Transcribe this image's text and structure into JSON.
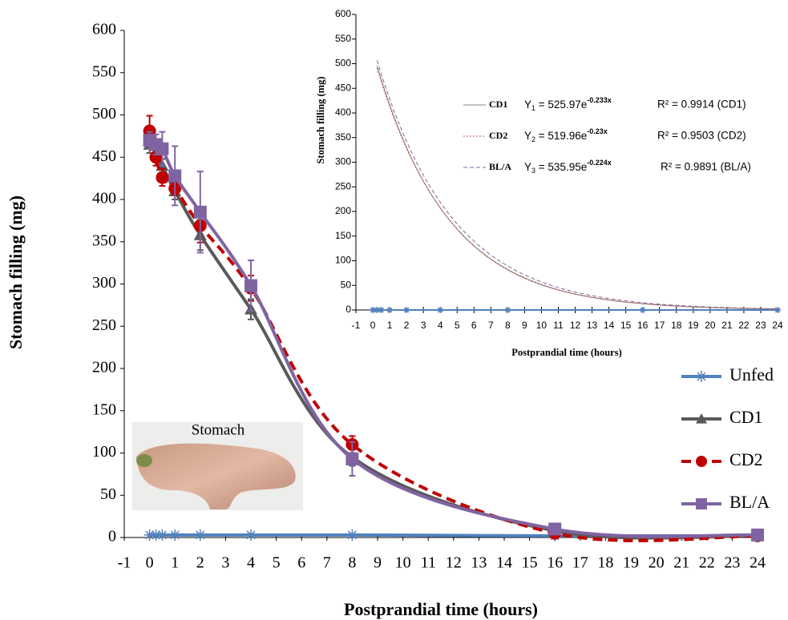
{
  "chart_data": [
    {
      "type": "line",
      "x_label": "Postprandial time (hours)",
      "y_label": "Stomach filling (mg)",
      "photo_label": "Stomach",
      "x": [
        0,
        0.25,
        0.5,
        1,
        2,
        4,
        8,
        16,
        24
      ],
      "xlim": [
        -1,
        24
      ],
      "xticks": [
        -1,
        0,
        1,
        2,
        3,
        4,
        5,
        6,
        7,
        8,
        9,
        10,
        11,
        12,
        13,
        14,
        15,
        16,
        17,
        18,
        19,
        20,
        21,
        22,
        23,
        24
      ],
      "ylim": [
        0,
        600
      ],
      "yticks": [
        0,
        50,
        100,
        150,
        200,
        250,
        300,
        350,
        400,
        450,
        500,
        550,
        600
      ],
      "legend": "right",
      "series": [
        {
          "name": "Unfed",
          "color": "#4f81bd",
          "marker": "asterisk",
          "dash": false,
          "values": [
            3,
            3,
            3,
            3,
            3,
            3,
            3,
            2,
            2
          ]
        },
        {
          "name": "CD1",
          "color": "#595959",
          "marker": "triangle",
          "dash": false,
          "values": [
            465,
            455,
            440,
            410,
            358,
            270,
            95,
            8,
            2
          ],
          "errors": [
            10,
            10,
            8,
            10,
            18,
            12,
            10,
            2,
            1
          ]
        },
        {
          "name": "CD2",
          "color": "#c00000",
          "marker": "circle",
          "dash": true,
          "values": [
            481,
            450,
            426,
            413,
            369,
            295,
            110,
            5,
            2
          ],
          "errors": [
            18,
            10,
            10,
            8,
            20,
            15,
            10,
            2,
            1
          ]
        },
        {
          "name": "BL/A",
          "color": "#8064a2",
          "marker": "square",
          "dash": false,
          "values": [
            470,
            465,
            460,
            428,
            385,
            298,
            93,
            10,
            3
          ],
          "errors": [
            10,
            12,
            20,
            35,
            48,
            30,
            20,
            3,
            1
          ]
        }
      ]
    },
    {
      "type": "line",
      "x_label": "Postprandial time (hours)",
      "y_label": "Stomach filling  (mg)",
      "xlim": [
        -1,
        24
      ],
      "xticks": [
        -1,
        0,
        1,
        2,
        3,
        4,
        5,
        6,
        7,
        8,
        9,
        10,
        11,
        12,
        13,
        14,
        15,
        16,
        17,
        18,
        19,
        20,
        21,
        22,
        23,
        24
      ],
      "ylim": [
        0,
        600
      ],
      "yticks": [
        0,
        50,
        100,
        150,
        200,
        250,
        300,
        350,
        400,
        450,
        500,
        550,
        600
      ],
      "series": [
        {
          "color": "#4f81bd",
          "x": [
            0,
            0.25,
            0.5,
            1,
            2,
            4,
            8,
            16,
            24
          ],
          "values": [
            0,
            0,
            0,
            0,
            0,
            0,
            0,
            0,
            0
          ]
        }
      ],
      "fits": [
        {
          "name": "CD1",
          "color": "#808080",
          "dash": "none",
          "a": 525.97,
          "b": -0.233,
          "equation": [
            {
              "text": "Y"
            },
            {
              "text": "1",
              "sub": true
            },
            {
              "text": " = 525.97e"
            },
            {
              "text": "-0.233x",
              "sup": true
            }
          ],
          "r2": "R² = 0.9914 (CD1)"
        },
        {
          "name": "CD2",
          "color": "#c0504d",
          "dash": "2,2",
          "a": 519.96,
          "b": -0.23,
          "equation": [
            {
              "text": "Y"
            },
            {
              "text": "2",
              "sub": true
            },
            {
              "text": " = 519.96e"
            },
            {
              "text": "-0.23x",
              "sup": true
            }
          ],
          "r2": "R² = 0.9503 (CD2)"
        },
        {
          "name": "BL/A",
          "color": "#8064a2",
          "dash": "5,3",
          "a": 535.95,
          "b": -0.224,
          "equation": [
            {
              "text": "Y"
            },
            {
              "text": "3",
              "sub": true
            },
            {
              "text": " = 535.95e"
            },
            {
              "text": "-0.224x",
              "sup": true
            }
          ],
          "r2": "R² = 0.9891 (BL/A)"
        }
      ]
    }
  ]
}
